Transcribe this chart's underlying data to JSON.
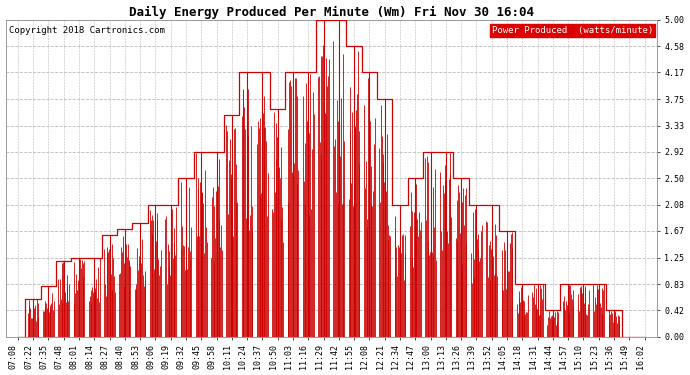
{
  "title": "Daily Energy Produced Per Minute (Wm) Fri Nov 30 16:04",
  "copyright": "Copyright 2018 Cartronics.com",
  "legend_label": "Power Produced  (watts/minute)",
  "legend_bg": "#dd0000",
  "legend_fg": "#ffffff",
  "line_color": "#cc0000",
  "background_color": "#ffffff",
  "grid_color": "#bbbbbb",
  "ylim": [
    0.0,
    5.0
  ],
  "yticks": [
    0.0,
    0.42,
    0.83,
    1.25,
    1.67,
    2.08,
    2.5,
    2.92,
    3.33,
    3.75,
    4.17,
    4.58,
    5.0
  ],
  "title_fontsize": 9,
  "copyright_fontsize": 6.5,
  "tick_fontsize": 6,
  "xtick_rotation": 90,
  "time_labels": [
    "07:08",
    "07:22",
    "07:35",
    "07:48",
    "08:01",
    "08:14",
    "08:27",
    "08:40",
    "08:53",
    "09:06",
    "09:19",
    "09:32",
    "09:45",
    "09:58",
    "10:11",
    "10:24",
    "10:37",
    "10:50",
    "11:03",
    "11:16",
    "11:29",
    "11:42",
    "11:55",
    "12:08",
    "12:21",
    "12:34",
    "12:47",
    "13:00",
    "13:13",
    "13:26",
    "13:39",
    "13:52",
    "14:05",
    "14:18",
    "14:31",
    "14:44",
    "14:57",
    "15:10",
    "15:23",
    "15:36",
    "15:49",
    "16:02"
  ],
  "values": [
    0.0,
    0.6,
    0.8,
    1.2,
    1.25,
    1.25,
    1.6,
    1.7,
    1.8,
    2.08,
    2.08,
    2.5,
    2.92,
    2.92,
    3.5,
    4.17,
    4.17,
    3.6,
    4.17,
    4.17,
    5.0,
    5.0,
    4.58,
    4.17,
    3.75,
    2.08,
    2.5,
    2.92,
    2.92,
    2.5,
    2.08,
    2.08,
    1.67,
    0.83,
    0.83,
    0.42,
    0.83,
    0.83,
    0.83,
    0.42,
    0.0,
    0.0
  ],
  "noise_seed": 42
}
